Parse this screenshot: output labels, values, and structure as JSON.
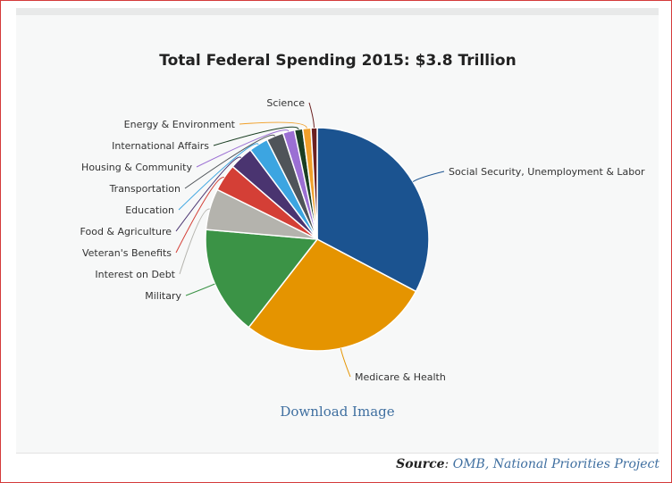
{
  "chart_data": {
    "type": "pie",
    "title": "Total Federal Spending 2015: $3.8 Trillion",
    "slices": [
      {
        "label": "Social Security, Unemployment & Labor",
        "value": 33,
        "color": "#1b5390"
      },
      {
        "label": "Medicare & Health",
        "value": 28,
        "color": "#e59400"
      },
      {
        "label": "Military",
        "value": 16,
        "color": "#3b9346"
      },
      {
        "label": "Interest on Debt",
        "value": 6,
        "color": "#b4b3ad"
      },
      {
        "label": "Veteran's Benefits",
        "value": 4,
        "color": "#d43f36"
      },
      {
        "label": "Food & Agriculture",
        "value": 3.5,
        "color": "#4a3470"
      },
      {
        "label": "Education",
        "value": 2.8,
        "color": "#3ca5e1"
      },
      {
        "label": "Transportation",
        "value": 2.5,
        "color": "#4f5459"
      },
      {
        "label": "Housing & Community",
        "value": 1.7,
        "color": "#9b6fd3"
      },
      {
        "label": "International Affairs",
        "value": 1.2,
        "color": "#1a3e22"
      },
      {
        "label": "Energy & Environment",
        "value": 1.2,
        "color": "#f0a02a"
      },
      {
        "label": "Science",
        "value": 0.9,
        "color": "#6b2020"
      }
    ]
  },
  "download_label": "Download Image",
  "source": {
    "label": "Source",
    "separator": ": ",
    "links": "OMB, National Priorities Project"
  }
}
